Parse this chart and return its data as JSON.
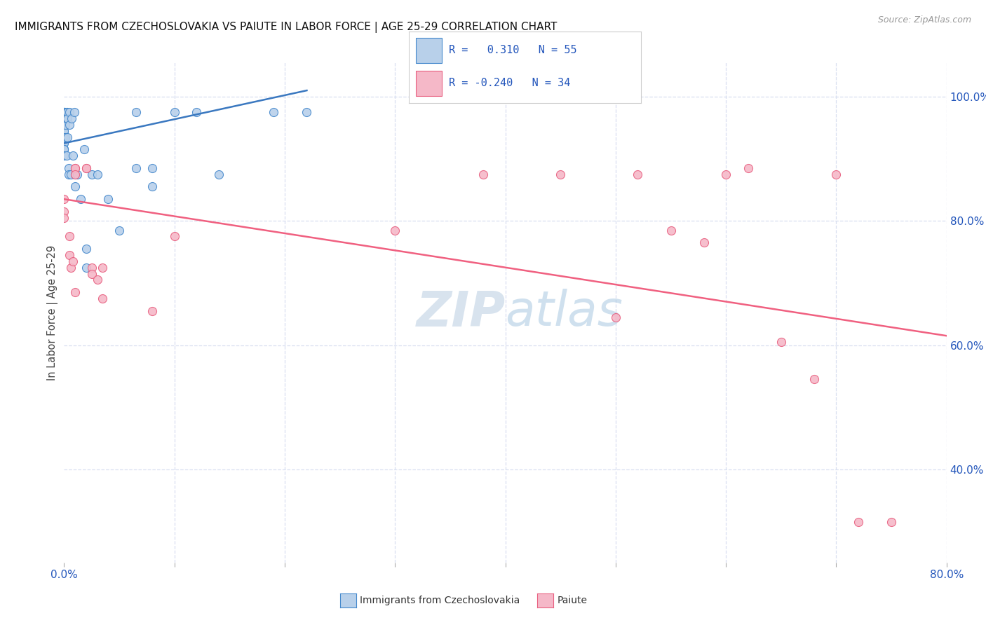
{
  "title": "IMMIGRANTS FROM CZECHOSLOVAKIA VS PAIUTE IN LABOR FORCE | AGE 25-29 CORRELATION CHART",
  "source": "Source: ZipAtlas.com",
  "ylabel": "In Labor Force | Age 25-29",
  "right_yticks": [
    40.0,
    60.0,
    80.0,
    100.0
  ],
  "xmin": 0.0,
  "xmax": 0.8,
  "ymin": 0.25,
  "ymax": 1.055,
  "blue_R": 0.31,
  "blue_N": 55,
  "pink_R": -0.24,
  "pink_N": 34,
  "blue_fill": "#b8d0ea",
  "pink_fill": "#f5b8c8",
  "blue_edge": "#4488cc",
  "pink_edge": "#e86080",
  "blue_line": "#3a78c0",
  "pink_line": "#f06080",
  "background_color": "#ffffff",
  "grid_color": "#d8dff0",
  "blue_scatter_x": [
    0.0,
    0.0,
    0.0,
    0.0,
    0.0,
    0.0,
    0.0,
    0.0,
    0.0,
    0.0,
    0.0,
    0.0,
    0.0,
    0.0,
    0.0,
    0.0,
    0.0,
    0.001,
    0.001,
    0.001,
    0.001,
    0.002,
    0.002,
    0.002,
    0.003,
    0.003,
    0.003,
    0.004,
    0.004,
    0.005,
    0.005,
    0.006,
    0.007,
    0.008,
    0.009,
    0.01,
    0.01,
    0.012,
    0.015,
    0.018,
    0.02,
    0.02,
    0.025,
    0.03,
    0.04,
    0.05,
    0.065,
    0.065,
    0.08,
    0.08,
    0.1,
    0.12,
    0.14,
    0.19,
    0.22
  ],
  "blue_scatter_y": [
    0.975,
    0.975,
    0.975,
    0.975,
    0.965,
    0.965,
    0.965,
    0.955,
    0.945,
    0.945,
    0.935,
    0.925,
    0.925,
    0.915,
    0.915,
    0.915,
    0.905,
    0.975,
    0.965,
    0.955,
    0.935,
    0.975,
    0.965,
    0.905,
    0.975,
    0.965,
    0.935,
    0.885,
    0.875,
    0.975,
    0.955,
    0.875,
    0.965,
    0.905,
    0.975,
    0.875,
    0.855,
    0.875,
    0.835,
    0.915,
    0.755,
    0.725,
    0.875,
    0.875,
    0.835,
    0.785,
    0.975,
    0.885,
    0.885,
    0.855,
    0.975,
    0.975,
    0.875,
    0.975,
    0.975
  ],
  "pink_scatter_x": [
    0.0,
    0.0,
    0.0,
    0.005,
    0.005,
    0.006,
    0.008,
    0.01,
    0.01,
    0.01,
    0.01,
    0.02,
    0.02,
    0.025,
    0.025,
    0.03,
    0.035,
    0.035,
    0.08,
    0.1,
    0.3,
    0.38,
    0.45,
    0.5,
    0.52,
    0.55,
    0.58,
    0.6,
    0.62,
    0.65,
    0.68,
    0.7,
    0.72,
    0.75
  ],
  "pink_scatter_y": [
    0.835,
    0.815,
    0.805,
    0.775,
    0.745,
    0.725,
    0.735,
    0.885,
    0.885,
    0.875,
    0.685,
    0.885,
    0.885,
    0.725,
    0.715,
    0.705,
    0.725,
    0.675,
    0.655,
    0.775,
    0.785,
    0.875,
    0.875,
    0.645,
    0.875,
    0.785,
    0.765,
    0.875,
    0.885,
    0.605,
    0.545,
    0.875,
    0.315,
    0.315
  ],
  "blue_trendline_x": [
    0.0,
    0.22
  ],
  "blue_trendline_y": [
    0.925,
    1.01
  ],
  "pink_trendline_x": [
    0.0,
    0.8
  ],
  "pink_trendline_y": [
    0.835,
    0.615
  ]
}
